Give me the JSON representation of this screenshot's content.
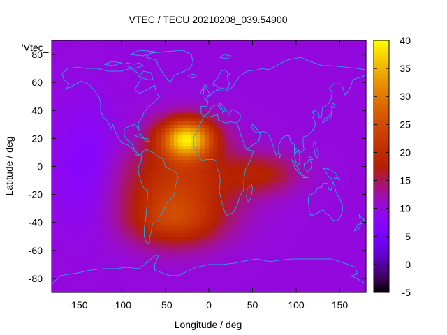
{
  "chart_data": {
    "type": "heatmap",
    "title": "VTEC / TECU 20210208_039.54900",
    "xlabel": "Longitude / deg",
    "ylabel": "Latitude / deg",
    "key_label": "'Vtec_",
    "xlim": [
      -180,
      180
    ],
    "ylim": [
      -90,
      90
    ],
    "x_ticks": [
      -150,
      -100,
      -50,
      0,
      50,
      100,
      150
    ],
    "y_ticks": [
      -80,
      -60,
      -40,
      -20,
      0,
      20,
      40,
      60,
      80
    ],
    "colorbar": {
      "range": [
        -5,
        40
      ],
      "ticks": [
        -5,
        0,
        5,
        10,
        15,
        20,
        25,
        30,
        35,
        40
      ]
    },
    "background_level": 10,
    "features": [
      {
        "name": "equatorial-anomaly-peak",
        "lon": -25,
        "lat": 20,
        "amplitude": 26,
        "lon_sigma": 22,
        "lat_sigma": 10
      },
      {
        "name": "south-america-africa-plume",
        "lon": -35,
        "lat": -15,
        "amplitude": 12,
        "lon_sigma": 45,
        "lat_sigma": 22
      },
      {
        "name": "southern-atlantic-tail",
        "lon": -40,
        "lat": -40,
        "amplitude": 8,
        "lon_sigma": 35,
        "lat_sigma": 12
      },
      {
        "name": "indian-ocean-extension",
        "lon": 60,
        "lat": -5,
        "amplitude": 7,
        "lon_sigma": 30,
        "lat_sigma": 10
      },
      {
        "name": "pacific-trough",
        "lon": -140,
        "lat": 0,
        "amplitude": -3,
        "lon_sigma": 25,
        "lat_sigma": 30
      }
    ]
  }
}
